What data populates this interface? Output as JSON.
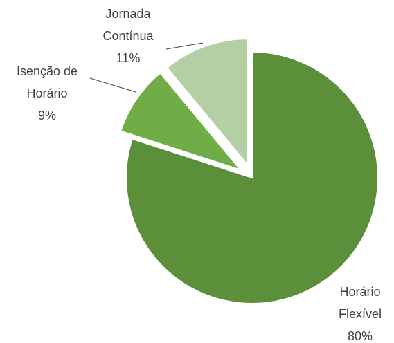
{
  "chart_data": {
    "type": "pie",
    "categories": [
      "Horário Flexível",
      "Isenção de Horário",
      "Jornada Contínua"
    ],
    "values": [
      80,
      9,
      11
    ],
    "value_labels": [
      "80%",
      "9%",
      "11%"
    ],
    "colors": [
      "#5b8f3a",
      "#70ad47",
      "#b5cfa5"
    ],
    "start_angle": 0,
    "direction": "clockwise"
  }
}
